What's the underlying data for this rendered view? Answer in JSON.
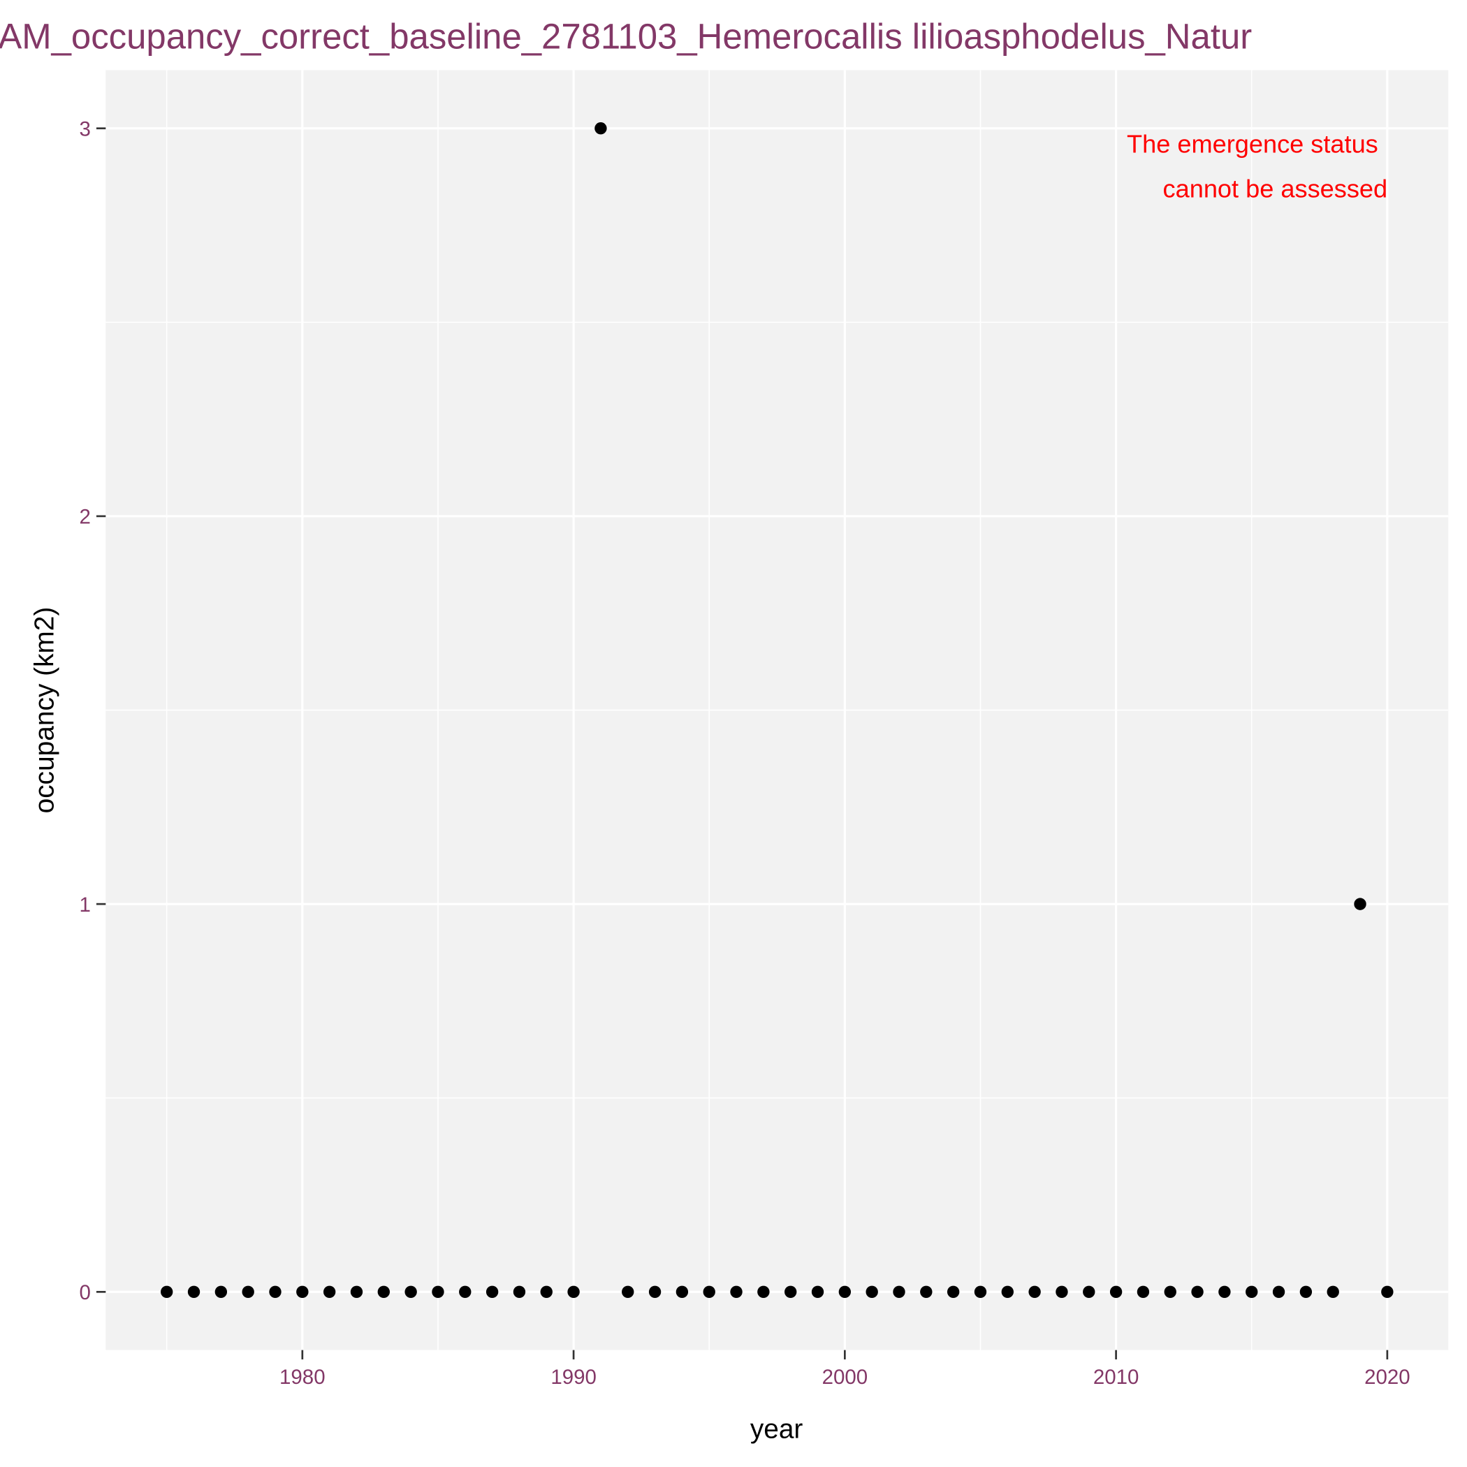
{
  "chart_data": {
    "type": "scatter",
    "title": "AM_occupancy_correct_baseline_2781103_Hemerocallis lilioasphodelus_Natur",
    "x_label": "year",
    "y_label": "occupancy (km2)",
    "annotation": [
      "The emergence status",
      "cannot be assessed"
    ],
    "annotation_color": "#ff0000",
    "x": [
      1975,
      1976,
      1977,
      1978,
      1979,
      1980,
      1981,
      1982,
      1983,
      1984,
      1985,
      1986,
      1987,
      1988,
      1989,
      1990,
      1991,
      1992,
      1993,
      1994,
      1995,
      1996,
      1997,
      1998,
      1999,
      2000,
      2001,
      2002,
      2003,
      2004,
      2005,
      2006,
      2007,
      2008,
      2009,
      2010,
      2011,
      2012,
      2013,
      2014,
      2015,
      2016,
      2017,
      2018,
      2019,
      2020
    ],
    "values": [
      0,
      0,
      0,
      0,
      0,
      0,
      0,
      0,
      0,
      0,
      0,
      0,
      0,
      0,
      0,
      0,
      3,
      0,
      0,
      0,
      0,
      0,
      0,
      0,
      0,
      0,
      0,
      0,
      0,
      0,
      0,
      0,
      0,
      0,
      0,
      0,
      0,
      0,
      0,
      0,
      0,
      0,
      0,
      0,
      1,
      0
    ],
    "color": "#000000",
    "xlim": [
      1972.75,
      2022.25
    ],
    "xticks": [
      1980,
      1990,
      2000,
      2010,
      2020
    ],
    "ylim": [
      -0.15,
      3.15
    ],
    "yticks": [
      0,
      1,
      2,
      3
    ],
    "grid": true
  }
}
